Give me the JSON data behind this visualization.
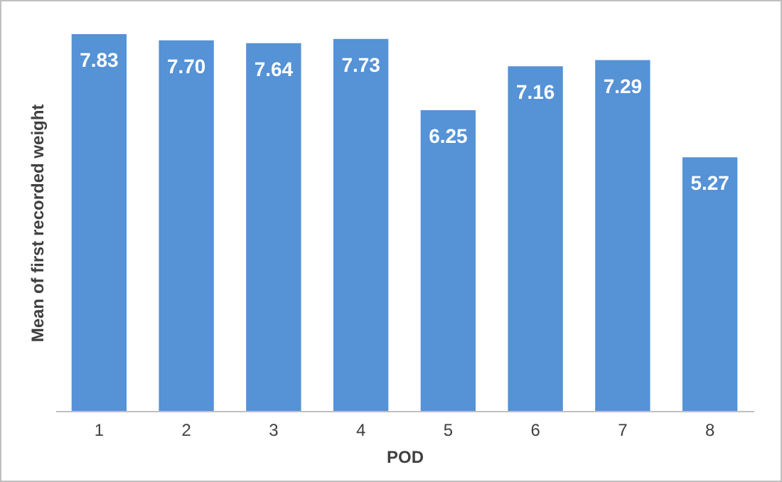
{
  "chart_data": {
    "type": "bar",
    "xlabel": "POD",
    "ylabel": "Mean of first recorded weight",
    "categories": [
      "1",
      "2",
      "3",
      "4",
      "5",
      "6",
      "7",
      "8"
    ],
    "values": [
      7.83,
      7.7,
      7.64,
      7.73,
      6.25,
      7.16,
      7.29,
      5.27
    ],
    "value_labels": [
      "7.83",
      "7.70",
      "7.64",
      "7.73",
      "6.25",
      "7.16",
      "7.29",
      "5.27"
    ],
    "color": "#5592d6",
    "tick_labels": "x",
    "grid": false
  }
}
